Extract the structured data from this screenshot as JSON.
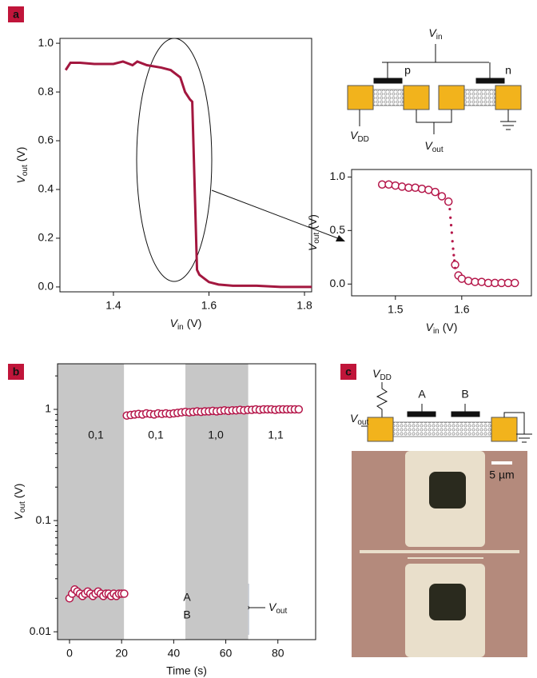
{
  "panel_labels": [
    "a",
    "b",
    "c"
  ],
  "circuit_a": {
    "vin": [
      "V",
      "in"
    ],
    "p": "p",
    "n": "n",
    "vdd": [
      "V",
      "DD"
    ],
    "vout": [
      "V",
      "out"
    ]
  },
  "circuit_c": {
    "vdd": [
      "V",
      "DD"
    ],
    "vout": [
      "V",
      "out"
    ],
    "a": "A",
    "b": "B",
    "scale": "5 µm"
  },
  "chart_data": [
    {
      "type": "line",
      "x": [
        1.3,
        1.31,
        1.33,
        1.36,
        1.4,
        1.42,
        1.44,
        1.45,
        1.47,
        1.5,
        1.52,
        1.54,
        1.55,
        1.56,
        1.565,
        1.575,
        1.58,
        1.6,
        1.62,
        1.65,
        1.7,
        1.75,
        1.8,
        1.815
      ],
      "series": [
        {
          "color": "#a3173f",
          "values": [
            0.89,
            0.92,
            0.92,
            0.915,
            0.915,
            0.925,
            0.91,
            0.925,
            0.91,
            0.9,
            0.89,
            0.86,
            0.8,
            0.77,
            0.76,
            0.07,
            0.05,
            0.02,
            0.01,
            0.005,
            0.005,
            0,
            0,
            0
          ]
        }
      ],
      "xlim": [
        1.288,
        1.815
      ],
      "ylim": [
        -0.02,
        1.02
      ],
      "xticks": [
        1.4,
        1.6,
        1.8
      ],
      "yticks": [
        {
          "value": 0,
          "label": "0.0"
        },
        0.2,
        0.4,
        0.6,
        0.8,
        {
          "value": 1,
          "label": "1.0"
        }
      ],
      "x_label": [
        "V",
        "in",
        "(V)"
      ],
      "y_label": [
        "V",
        "out",
        "(V)"
      ]
    },
    {
      "type": "scatter",
      "series": [
        {
          "color": "#b5174a",
          "marker": "circle",
          "x": [
            1.48,
            1.49,
            1.5,
            1.51,
            1.52,
            1.53,
            1.54,
            1.55,
            1.56,
            1.57,
            1.58,
            1.59,
            1.595,
            1.6,
            1.61,
            1.62,
            1.63,
            1.64,
            1.65,
            1.66,
            1.67,
            1.68
          ],
          "values": [
            0.93,
            0.93,
            0.92,
            0.91,
            0.9,
            0.9,
            0.89,
            0.88,
            0.86,
            0.82,
            0.77,
            0.18,
            0.08,
            0.05,
            0.03,
            0.02,
            0.02,
            0.01,
            0.01,
            0.01,
            0.01,
            0.01
          ]
        },
        {
          "color": "#b5174a",
          "marker": "dot",
          "x": [
            1.582,
            1.583,
            1.584,
            1.585,
            1.586,
            1.587,
            1.588,
            1.589,
            1.59
          ],
          "values": [
            0.7,
            0.62,
            0.55,
            0.48,
            0.4,
            0.33,
            0.27,
            0.22,
            0.15
          ]
        }
      ],
      "xlim": [
        1.434,
        1.705
      ],
      "ylim": [
        -0.11,
        1.07
      ],
      "xticks": [
        1.5,
        1.6
      ],
      "yticks": [
        {
          "value": 0,
          "label": "0.0"
        },
        0.5,
        {
          "value": 1,
          "label": "1.0"
        }
      ],
      "x_label": [
        "V",
        "in",
        "(V)"
      ],
      "y_label": [
        "V",
        "out",
        "(V)"
      ]
    },
    {
      "type": "scatter",
      "log_y": true,
      "series": [
        {
          "color": "#b5174a",
          "marker": "circle",
          "x": [
            0,
            1,
            2,
            3,
            4,
            5,
            6,
            7,
            8,
            9,
            10,
            11,
            12,
            13,
            14,
            15,
            16,
            17,
            18,
            19,
            20,
            21
          ],
          "values": [
            0.02,
            0.022,
            0.024,
            0.023,
            0.022,
            0.021,
            0.022,
            0.023,
            0.022,
            0.021,
            0.022,
            0.023,
            0.022,
            0.021,
            0.022,
            0.022,
            0.021,
            0.022,
            0.021,
            0.022,
            0.022,
            0.022
          ]
        },
        {
          "color": "#b5174a",
          "marker": "circle",
          "x": [
            22,
            23.5,
            25,
            26.5,
            28,
            29.5,
            31,
            32.5,
            34,
            35.5,
            37,
            38.5,
            40,
            41.5,
            43,
            44.5,
            46,
            47.5,
            49,
            50.5,
            52,
            53.5,
            55,
            56.5,
            58,
            59.5,
            61,
            62.5,
            64,
            65.5,
            67,
            68.5,
            70,
            71.5,
            73,
            74.5,
            76,
            77.5,
            79,
            80.5,
            82,
            83.5,
            85,
            86.5,
            88
          ],
          "values": [
            0.88,
            0.89,
            0.9,
            0.91,
            0.9,
            0.92,
            0.91,
            0.9,
            0.92,
            0.91,
            0.92,
            0.91,
            0.92,
            0.93,
            0.94,
            0.95,
            0.94,
            0.95,
            0.96,
            0.95,
            0.96,
            0.96,
            0.97,
            0.96,
            0.97,
            0.98,
            0.97,
            0.98,
            0.98,
            0.99,
            0.98,
            0.99,
            0.99,
            1.0,
            0.99,
            1.0,
            1.0,
            1.0,
            0.99,
            1.0,
            1.0,
            1.0,
            1.0,
            1.0,
            1.0
          ]
        }
      ],
      "shaded": [
        [
          -4.6,
          20.9
        ],
        [
          44.5,
          68.6
        ]
      ],
      "xlim": [
        -4.6,
        94.5
      ],
      "ylim": [
        0.0085,
        2.57
      ],
      "xticks": [
        0,
        20,
        40,
        60,
        80
      ],
      "yticks": [
        0.01,
        0.1,
        1
      ],
      "annotations": [
        "0,1",
        "0,1",
        "1,0",
        "1,1"
      ],
      "gate": {
        "a": "A",
        "b": "B",
        "out": [
          "V",
          "out"
        ]
      },
      "x_label": "Time (s)",
      "y_label": [
        "V",
        "out",
        "(V)"
      ]
    }
  ]
}
